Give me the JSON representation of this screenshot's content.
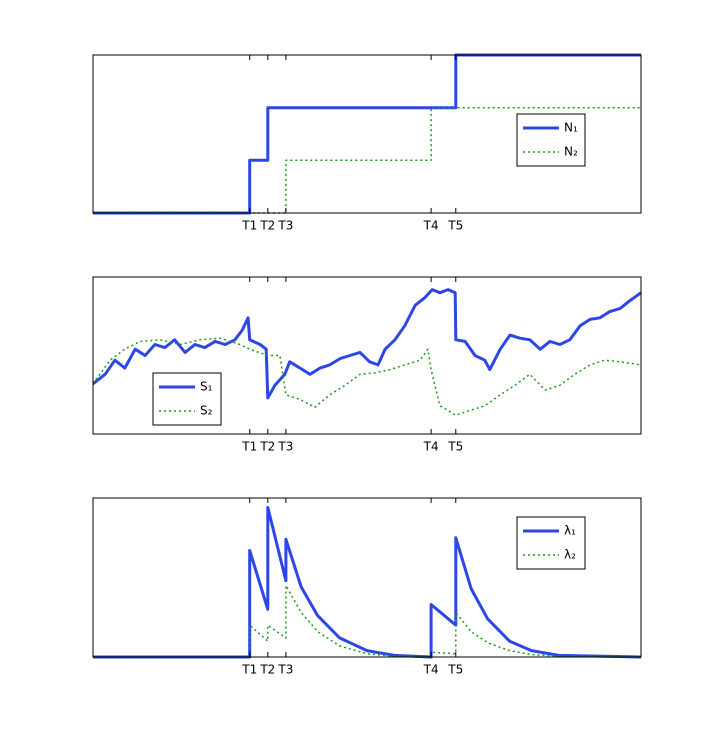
{
  "chart_data": [
    {
      "type": "line",
      "legend": "east",
      "xlim": [
        0,
        100
      ],
      "ylim": [
        0,
        3
      ],
      "xticks": [
        {
          "value": 28.6,
          "label": "T1"
        },
        {
          "value": 31.9,
          "label": "T2"
        },
        {
          "value": 35.2,
          "label": "T3"
        },
        {
          "value": 61.7,
          "label": "T4"
        },
        {
          "value": 66.2,
          "label": "T5"
        }
      ],
      "series": [
        {
          "name": "N₁",
          "color": "#2b47e6",
          "style": "solid",
          "x": [
            0,
            28.6,
            28.6,
            31.9,
            31.9,
            66.2,
            66.2,
            100
          ],
          "values": [
            0,
            0,
            1,
            1,
            2,
            2,
            3,
            3
          ]
        },
        {
          "name": "N₂",
          "color": "#1a9a1a",
          "style": "dotted",
          "x": [
            0,
            35.2,
            35.2,
            61.7,
            61.7,
            100
          ],
          "values": [
            0,
            0,
            1,
            1,
            2,
            2
          ]
        }
      ]
    },
    {
      "type": "line",
      "legend": "southwest",
      "xlim": [
        0,
        100
      ],
      "ylim": [
        0,
        10
      ],
      "xticks": [
        {
          "value": 28.6,
          "label": "T1"
        },
        {
          "value": 31.9,
          "label": "T2"
        },
        {
          "value": 35.2,
          "label": "T3"
        },
        {
          "value": 61.7,
          "label": "T4"
        },
        {
          "value": 66.2,
          "label": "T5"
        }
      ],
      "series": [
        {
          "name": "S₁",
          "color": "#2b47e6",
          "style": "solid",
          "x": [
            0,
            2.2,
            4.0,
            5.8,
            7.7,
            9.5,
            11.3,
            13.1,
            14.9,
            16.8,
            18.6,
            20.4,
            22.3,
            24.1,
            25.9,
            27.2,
            28.3,
            28.6,
            30.5,
            31.6,
            31.9,
            33.2,
            35.0,
            35.9,
            37.8,
            39.6,
            41.4,
            43.2,
            45.1,
            46.9,
            48.7,
            50.5,
            52.0,
            53.3,
            55.1,
            56.9,
            58.8,
            60.6,
            61.9,
            63.3,
            64.8,
            66.1,
            66.2,
            67.9,
            69.7,
            71.5,
            72.4,
            74.3,
            76.1,
            77.9,
            79.7,
            81.6,
            83.4,
            85.2,
            87.0,
            88.9,
            90.7,
            92.5,
            94.3,
            96.2,
            98.0,
            100
          ],
          "values": [
            3.2,
            3.8,
            4.7,
            4.2,
            5.4,
            5.0,
            5.7,
            5.5,
            6.0,
            5.2,
            5.7,
            5.5,
            5.9,
            5.7,
            6.0,
            6.6,
            7.4,
            6.0,
            5.7,
            5.4,
            2.3,
            3.1,
            3.8,
            4.6,
            4.2,
            3.8,
            4.2,
            4.4,
            4.8,
            5.0,
            5.2,
            4.6,
            4.4,
            5.4,
            6.0,
            6.9,
            8.2,
            8.7,
            9.2,
            9.0,
            9.2,
            9.0,
            6.0,
            5.9,
            5.0,
            4.7,
            4.1,
            5.4,
            6.3,
            6.1,
            6.0,
            5.4,
            5.9,
            5.7,
            6.0,
            6.9,
            7.3,
            7.4,
            7.8,
            8.0,
            8.5,
            9.0
          ]
        },
        {
          "name": "S₂",
          "color": "#1a9a1a",
          "style": "dotted",
          "x": [
            0,
            3.1,
            5.8,
            8.6,
            12.2,
            15.9,
            19.5,
            23.2,
            26.8,
            28.6,
            31.9,
            34.1,
            35.2,
            37.8,
            40.5,
            43.2,
            46.0,
            48.7,
            51.5,
            54.2,
            56.9,
            59.7,
            61.1,
            61.7,
            63.3,
            66.2,
            68.8,
            71.5,
            74.3,
            77.0,
            79.7,
            82.5,
            85.2,
            87.9,
            90.7,
            93.4,
            96.2,
            100
          ],
          "values": [
            3.2,
            4.7,
            5.4,
            5.9,
            6.0,
            5.7,
            6.0,
            6.1,
            5.7,
            5.4,
            5.0,
            5.0,
            2.5,
            2.2,
            1.7,
            2.5,
            3.1,
            3.8,
            3.9,
            4.1,
            4.4,
            4.7,
            5.4,
            4.1,
            1.8,
            1.2,
            1.5,
            1.8,
            2.5,
            3.1,
            3.8,
            2.8,
            3.1,
            3.8,
            4.4,
            4.7,
            4.6,
            4.4
          ]
        }
      ]
    },
    {
      "type": "line",
      "legend": "northeast",
      "xlim": [
        0,
        100
      ],
      "ylim": [
        0,
        10
      ],
      "xticks": [
        {
          "value": 28.6,
          "label": "T1"
        },
        {
          "value": 31.9,
          "label": "T2"
        },
        {
          "value": 35.2,
          "label": "T3"
        },
        {
          "value": 61.7,
          "label": "T4"
        },
        {
          "value": 66.2,
          "label": "T5"
        }
      ],
      "series": [
        {
          "name": "λ₁",
          "color": "#2b47e6",
          "style": "solid",
          "x": [
            0,
            28.6,
            28.6,
            31.9,
            31.9,
            35.2,
            35.2,
            38,
            41,
            45,
            50,
            55,
            61.7,
            61.7,
            66.2,
            66.2,
            69,
            72,
            76,
            80,
            85,
            100
          ],
          "values": [
            0,
            0,
            6.7,
            3.0,
            9.4,
            4.8,
            7.4,
            4.4,
            2.6,
            1.2,
            0.4,
            0.1,
            0,
            3.3,
            2.0,
            7.5,
            4.3,
            2.4,
            1.0,
            0.4,
            0.1,
            0
          ]
        },
        {
          "name": "λ₂",
          "color": "#1a9a1a",
          "style": "dotted",
          "x": [
            0,
            28.6,
            28.6,
            31.9,
            31.9,
            35.2,
            35.2,
            38,
            41,
            45,
            50,
            55,
            61.7,
            61.7,
            66.2,
            66.2,
            69,
            72,
            76,
            80,
            85,
            100
          ],
          "values": [
            0,
            0,
            2.0,
            1.0,
            2.0,
            1.2,
            4.5,
            2.8,
            1.6,
            0.7,
            0.2,
            0.05,
            0,
            0.3,
            0.2,
            2.8,
            1.6,
            0.9,
            0.4,
            0.15,
            0.05,
            0
          ]
        }
      ]
    }
  ]
}
